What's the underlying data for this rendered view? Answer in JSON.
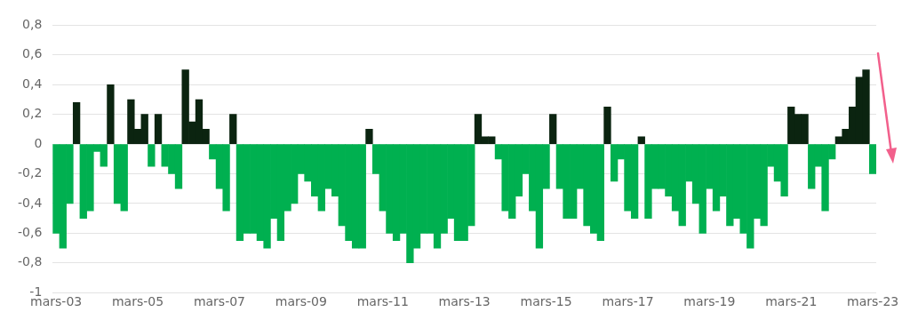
{
  "chart_data": {
    "type": "bar",
    "x": [
      "2003-03",
      "2003-05",
      "2003-07",
      "2003-09",
      "2003-11",
      "2004-01",
      "2004-03",
      "2004-05",
      "2004-07",
      "2004-09",
      "2004-11",
      "2005-01",
      "2005-03",
      "2005-05",
      "2005-07",
      "2005-09",
      "2005-11",
      "2006-01",
      "2006-03",
      "2006-05",
      "2006-07",
      "2006-09",
      "2006-11",
      "2007-01",
      "2007-03",
      "2007-05",
      "2007-07",
      "2007-09",
      "2007-11",
      "2008-01",
      "2008-03",
      "2008-05",
      "2008-07",
      "2008-09",
      "2008-11",
      "2009-01",
      "2009-03",
      "2009-05",
      "2009-07",
      "2009-09",
      "2009-11",
      "2010-01",
      "2010-03",
      "2010-05",
      "2010-07",
      "2010-09",
      "2010-11",
      "2011-01",
      "2011-03",
      "2011-05",
      "2011-07",
      "2011-09",
      "2011-11",
      "2012-01",
      "2012-03",
      "2012-05",
      "2012-07",
      "2012-09",
      "2012-11",
      "2013-01",
      "2013-03",
      "2013-05",
      "2013-07",
      "2013-09",
      "2013-11",
      "2014-01",
      "2014-03",
      "2014-05",
      "2014-07",
      "2014-09",
      "2014-11",
      "2015-01",
      "2015-03",
      "2015-05",
      "2015-07",
      "2015-09",
      "2015-11",
      "2016-01",
      "2016-03",
      "2016-05",
      "2016-07",
      "2016-09",
      "2016-11",
      "2017-01",
      "2017-03",
      "2017-05",
      "2017-07",
      "2017-09",
      "2017-11",
      "2018-01",
      "2018-03",
      "2018-05",
      "2018-07",
      "2018-09",
      "2018-11",
      "2019-01",
      "2019-03",
      "2019-05",
      "2019-07",
      "2019-09",
      "2019-11",
      "2020-01",
      "2020-03",
      "2020-05",
      "2020-07",
      "2020-09",
      "2020-11",
      "2021-01",
      "2021-03",
      "2021-05",
      "2021-07",
      "2021-09",
      "2021-11",
      "2022-01",
      "2022-03",
      "2022-05",
      "2022-07",
      "2022-09",
      "2022-11",
      "2023-01",
      "2023-03"
    ],
    "values": [
      -0.6,
      -0.7,
      -0.4,
      0.28,
      -0.5,
      -0.45,
      -0.05,
      -0.15,
      0.4,
      -0.4,
      -0.45,
      0.3,
      0.1,
      0.2,
      -0.15,
      0.2,
      -0.15,
      -0.2,
      -0.3,
      0.5,
      0.15,
      0.3,
      0.1,
      -0.1,
      -0.3,
      -0.45,
      0.2,
      -0.65,
      -0.6,
      -0.6,
      -0.65,
      -0.7,
      -0.5,
      -0.65,
      -0.45,
      -0.4,
      -0.2,
      -0.25,
      -0.35,
      -0.45,
      -0.3,
      -0.35,
      -0.55,
      -0.65,
      -0.7,
      -0.7,
      0.1,
      -0.2,
      -0.45,
      -0.6,
      -0.65,
      -0.6,
      -0.8,
      -0.7,
      -0.6,
      -0.6,
      -0.7,
      -0.6,
      -0.5,
      -0.65,
      -0.65,
      -0.55,
      0.2,
      0.05,
      0.05,
      -0.1,
      -0.45,
      -0.5,
      -0.35,
      -0.2,
      -0.45,
      -0.7,
      -0.3,
      0.2,
      -0.3,
      -0.5,
      -0.5,
      -0.3,
      -0.55,
      -0.6,
      -0.65,
      0.25,
      -0.25,
      -0.1,
      -0.45,
      -0.5,
      0.05,
      -0.5,
      -0.3,
      -0.3,
      -0.35,
      -0.45,
      -0.55,
      -0.25,
      -0.4,
      -0.6,
      -0.3,
      -0.45,
      -0.35,
      -0.55,
      -0.5,
      -0.6,
      -0.7,
      -0.5,
      -0.55,
      -0.15,
      -0.25,
      -0.35,
      0.25,
      0.2,
      0.2,
      -0.3,
      -0.15,
      -0.45,
      -0.1,
      0.05,
      0.1,
      0.25,
      0.45,
      0.5,
      -0.2
    ],
    "colors": [
      "#00b050",
      "#00b050",
      "#00b050",
      "#0b2410",
      "#00b050",
      "#00b050",
      "#00b050",
      "#00b050",
      "#0b2410",
      "#00b050",
      "#00b050",
      "#0b2410",
      "#0b2410",
      "#0b2410",
      "#00b050",
      "#0b2410",
      "#00b050",
      "#00b050",
      "#00b050",
      "#0b2410",
      "#0b2410",
      "#0b2410",
      "#0b2410",
      "#00b050",
      "#00b050",
      "#00b050",
      "#0b2410",
      "#00b050",
      "#00b050",
      "#00b050",
      "#00b050",
      "#00b050",
      "#00b050",
      "#00b050",
      "#00b050",
      "#00b050",
      "#00b050",
      "#00b050",
      "#00b050",
      "#00b050",
      "#00b050",
      "#00b050",
      "#00b050",
      "#00b050",
      "#00b050",
      "#00b050",
      "#0b2410",
      "#00b050",
      "#00b050",
      "#00b050",
      "#00b050",
      "#00b050",
      "#00b050",
      "#00b050",
      "#00b050",
      "#00b050",
      "#00b050",
      "#00b050",
      "#00b050",
      "#00b050",
      "#00b050",
      "#00b050",
      "#0b2410",
      "#0b2410",
      "#0b2410",
      "#00b050",
      "#00b050",
      "#00b050",
      "#00b050",
      "#00b050",
      "#00b050",
      "#00b050",
      "#00b050",
      "#0b2410",
      "#00b050",
      "#00b050",
      "#00b050",
      "#00b050",
      "#00b050",
      "#00b050",
      "#00b050",
      "#0b2410",
      "#00b050",
      "#00b050",
      "#00b050",
      "#00b050",
      "#0b2410",
      "#00b050",
      "#00b050",
      "#00b050",
      "#00b050",
      "#00b050",
      "#00b050",
      "#00b050",
      "#00b050",
      "#00b050",
      "#00b050",
      "#00b050",
      "#00b050",
      "#00b050",
      "#00b050",
      "#00b050",
      "#00b050",
      "#00b050",
      "#00b050",
      "#00b050",
      "#00b050",
      "#00b050",
      "#0b2410",
      "#0b2410",
      "#0b2410",
      "#00b050",
      "#00b050",
      "#00b050",
      "#00b050",
      "#0b2410",
      "#0b2410",
      "#0b2410",
      "#0b2410",
      "#0b2410",
      "#00b050"
    ],
    "xlim": [
      "2003-02",
      "2023-04"
    ],
    "xticks": [
      {
        "value": "2003-03",
        "label": "mars-03"
      },
      {
        "value": "2005-03",
        "label": "mars-05"
      },
      {
        "value": "2007-03",
        "label": "mars-07"
      },
      {
        "value": "2009-03",
        "label": "mars-09"
      },
      {
        "value": "2011-03",
        "label": "mars-11"
      },
      {
        "value": "2013-03",
        "label": "mars-13"
      },
      {
        "value": "2015-03",
        "label": "mars-15"
      },
      {
        "value": "2017-03",
        "label": "mars-17"
      },
      {
        "value": "2019-03",
        "label": "mars-19"
      },
      {
        "value": "2021-03",
        "label": "mars-21"
      },
      {
        "value": "2023-03",
        "label": "mars-23"
      }
    ],
    "ylim": [
      -1,
      0.8
    ],
    "yticks": [
      -1,
      {
        "value": -0.8,
        "label": "-0,8"
      },
      {
        "value": -0.6,
        "label": "-0,6"
      },
      {
        "value": -0.4,
        "label": "-0,4"
      },
      {
        "value": -0.2,
        "label": "-0,2"
      },
      0,
      {
        "value": 0.2,
        "label": "0,2"
      },
      {
        "value": 0.4,
        "label": "0,4"
      },
      {
        "value": 0.6,
        "label": "0,6"
      },
      {
        "value": 0.8,
        "label": "0,8"
      }
    ],
    "grid": "y",
    "legend": false
  }
}
